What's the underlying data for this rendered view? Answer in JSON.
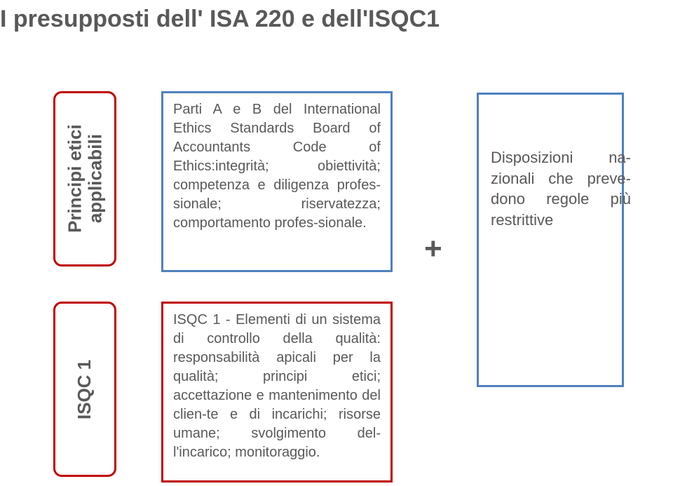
{
  "title": "I presupposti dell' ISA  220 e dell'ISQC1",
  "leftBoxes": {
    "top": {
      "line1": "Principi etici",
      "line2": "applicabili",
      "borderColor": "#c00000"
    },
    "bottom": {
      "label": "ISQC 1",
      "borderColor": "#c00000"
    }
  },
  "midBoxes": {
    "top": {
      "text": "Parti A e B del International Ethics Standards Board of Accountants Code of Ethics:integrità; obiettività; competenza e diligenza profes-sionale; riservatezza; comportamento profes-sionale.",
      "borderColor": "#4f81bd"
    },
    "bottom": {
      "text": "ISQC 1 - Elementi di un sistema di controllo della qualità: responsabilità apicali per la qualità; principi etici; accettazione e mantenimento del clien-te e di incarichi; risorse umane; svolgimento del-l'incarico; monitoraggio.",
      "borderColor": "#c00000"
    }
  },
  "plus": "+",
  "rightBox": {
    "text": "Disposizioni na-zionali che preve-dono regole più restrittive",
    "borderColor": "#4f81bd"
  },
  "colors": {
    "blue": "#4f81bd",
    "red": "#c00000",
    "text": "#595959",
    "background": "#ffffff"
  },
  "fonts": {
    "title_size": 34,
    "body_size": 20,
    "vertical_size": 26,
    "plus_size": 44
  }
}
